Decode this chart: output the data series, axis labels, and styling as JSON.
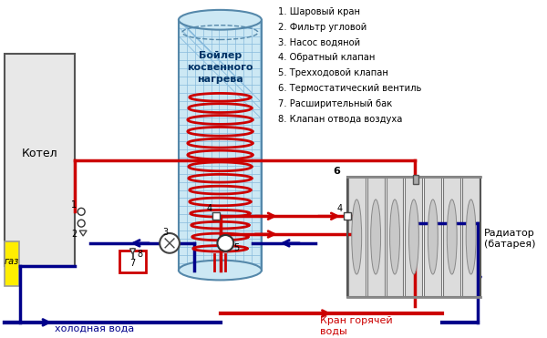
{
  "bg_color": "#ffffff",
  "red": "#cc0000",
  "blue": "#00008B",
  "legend_items": [
    "1. Шаровый кран",
    "2. Фильтр угловой",
    "3. Насос водяной",
    "4. Обратный клапан",
    "5. Трехходовой клапан",
    "6. Термостатический вентиль",
    "7. Расширительный бак",
    "8. Клапан отвода воздуха"
  ],
  "boiler_label": "Бойлер\nкосвенного\nнагрева",
  "kotel_label": "Котел",
  "gaz_label": "газ",
  "cold_water_label": "холодная вода",
  "hot_water_label": "Кран горячей\nводы",
  "radiator_label": "Радиатор\n(батарея)"
}
